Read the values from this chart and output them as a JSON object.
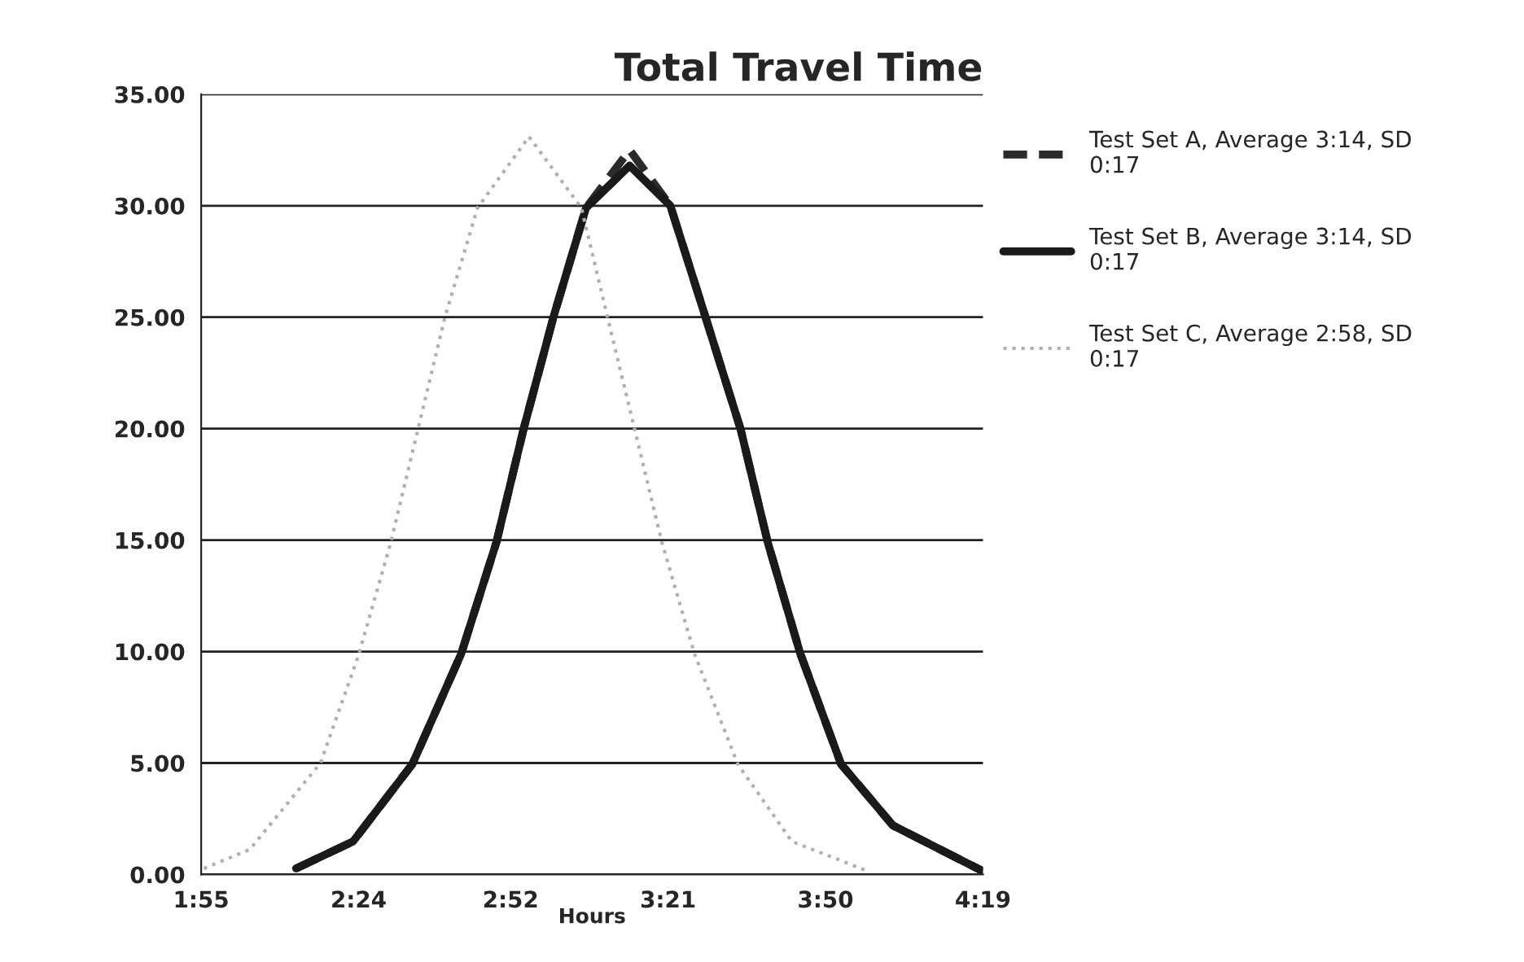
{
  "chart_data": {
    "type": "line",
    "title": "Total Travel Time",
    "xlabel": "Hours",
    "xlim": [
      1.9167,
      4.3167
    ],
    "xticks": [
      {
        "value": 1.9167,
        "label": "1:55"
      },
      {
        "value": 2.4,
        "label": "2:24"
      },
      {
        "value": 2.8667,
        "label": "2:52"
      },
      {
        "value": 3.35,
        "label": "3:21"
      },
      {
        "value": 3.8333,
        "label": "3:50"
      },
      {
        "value": 4.3167,
        "label": "4:19"
      }
    ],
    "ylim": [
      0,
      35
    ],
    "yticks": [
      {
        "value": 0,
        "label": "0.00"
      },
      {
        "value": 5,
        "label": "5.00"
      },
      {
        "value": 10,
        "label": "10.00"
      },
      {
        "value": 15,
        "label": "15.00"
      },
      {
        "value": 20,
        "label": "20.00"
      },
      {
        "value": 25,
        "label": "25.00"
      },
      {
        "value": 30,
        "label": "30.00"
      },
      {
        "value": 35,
        "label": "35.00"
      }
    ],
    "grid": "y",
    "legend": "right",
    "marker": "none",
    "series": [
      {
        "name": "Test Set A, Average 3:14, SD 0:17",
        "color": "#2b2b2b",
        "line_style": "dashed",
        "x": [
          2.208,
          2.383,
          2.565,
          2.715,
          2.823,
          2.906,
          2.998,
          3.098,
          3.232,
          3.357,
          3.465,
          3.573,
          3.656,
          3.756,
          3.881,
          4.04,
          4.316
        ],
        "values": [
          0.27,
          1.48,
          4.95,
          9.9,
          14.9,
          19.96,
          25.0,
          29.9,
          32.5,
          30.0,
          25.0,
          19.96,
          14.9,
          9.9,
          4.95,
          2.2,
          0.15
        ]
      },
      {
        "name": "Test Set B, Average 3:14, SD 0:17",
        "color": "#1a1a1a",
        "line_style": "solid",
        "x": [
          2.208,
          2.383,
          2.565,
          2.715,
          2.823,
          2.906,
          2.998,
          3.098,
          3.232,
          3.357,
          3.465,
          3.573,
          3.656,
          3.756,
          3.881,
          4.04,
          4.316
        ],
        "values": [
          0.27,
          1.48,
          4.95,
          9.9,
          14.9,
          19.96,
          25.0,
          29.9,
          31.8,
          30.0,
          25.0,
          19.96,
          14.9,
          9.9,
          4.95,
          2.2,
          0.15
        ]
      },
      {
        "name": "Test Set C, Average 2:58, SD 0:17",
        "color": "#b0b0b0",
        "line_style": "dotted",
        "x": [
          1.925,
          2.066,
          2.283,
          2.399,
          2.499,
          2.582,
          2.665,
          2.765,
          2.923,
          3.084,
          3.164,
          3.247,
          3.331,
          3.431,
          3.564,
          3.73,
          3.963
        ],
        "values": [
          0.27,
          1.12,
          5.0,
          9.8,
          14.9,
          19.96,
          25.0,
          29.9,
          33.1,
          29.9,
          25.0,
          20.0,
          14.9,
          9.9,
          4.95,
          1.48,
          0.15
        ]
      }
    ]
  }
}
